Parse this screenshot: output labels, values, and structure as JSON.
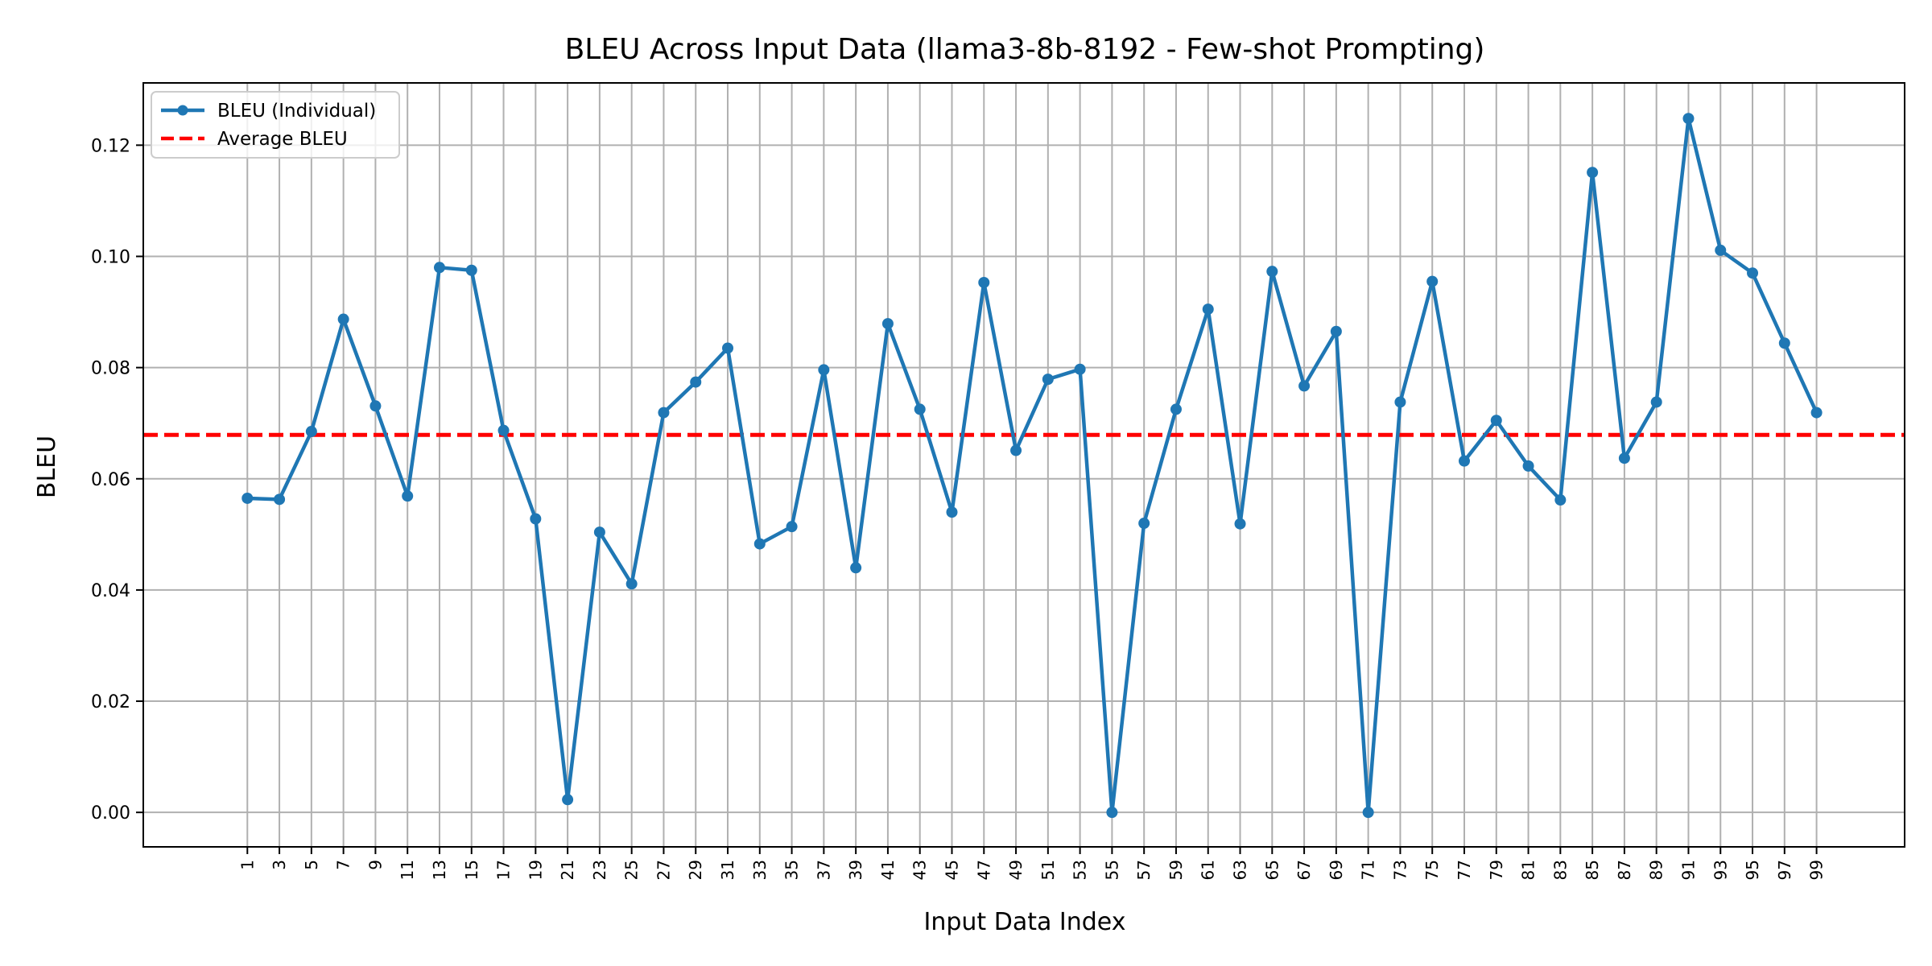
{
  "chart_data": {
    "type": "line",
    "title": "BLEU Across Input Data (llama3-8b-8192 - Few-shot Prompting)",
    "xlabel": "Input Data Index",
    "ylabel": "BLEU",
    "x": [
      1,
      3,
      5,
      7,
      9,
      11,
      13,
      15,
      17,
      19,
      21,
      23,
      25,
      27,
      29,
      31,
      33,
      35,
      37,
      39,
      41,
      43,
      45,
      47,
      49,
      51,
      53,
      55,
      57,
      59,
      61,
      63,
      65,
      67,
      69,
      71,
      73,
      75,
      77,
      79,
      81,
      83,
      85,
      87,
      89,
      91,
      93,
      95,
      97,
      99
    ],
    "xticks": [
      "1",
      "3",
      "5",
      "7",
      "9",
      "11",
      "13",
      "15",
      "17",
      "19",
      "21",
      "23",
      "25",
      "27",
      "29",
      "31",
      "33",
      "35",
      "37",
      "39",
      "41",
      "43",
      "45",
      "47",
      "49",
      "51",
      "53",
      "55",
      "57",
      "59",
      "61",
      "63",
      "65",
      "67",
      "69",
      "71",
      "73",
      "75",
      "77",
      "79",
      "81",
      "83",
      "85",
      "87",
      "89",
      "91",
      "93",
      "95",
      "97",
      "99"
    ],
    "yticks": [
      "0.00",
      "0.02",
      "0.04",
      "0.06",
      "0.08",
      "0.10",
      "0.12"
    ],
    "ytick_values": [
      0,
      0.02,
      0.04,
      0.06,
      0.08,
      0.1,
      0.12
    ],
    "xlim": [
      -5.5,
      104.5
    ],
    "ylim": [
      -0.0062,
      0.1312
    ],
    "grid": true,
    "legend_position": "top-left",
    "series": [
      {
        "name": "BLEU (Individual)",
        "color": "#1f77b4",
        "marker": "circle",
        "values": [
          0.0565,
          0.0563,
          0.0685,
          0.0887,
          0.0731,
          0.0569,
          0.098,
          0.0975,
          0.0687,
          0.0528,
          0.0023,
          0.0504,
          0.0411,
          0.0719,
          0.0774,
          0.0835,
          0.0483,
          0.0514,
          0.0796,
          0.044,
          0.0879,
          0.0725,
          0.054,
          0.0953,
          0.0651,
          0.0779,
          0.0797,
          0.0,
          0.052,
          0.0725,
          0.0905,
          0.0519,
          0.0973,
          0.0767,
          0.0865,
          0.0,
          0.0738,
          0.0955,
          0.0632,
          0.0705,
          0.0623,
          0.0562,
          0.1151,
          0.0637,
          0.0738,
          0.1248,
          0.1011,
          0.097,
          0.0844,
          0.0719
        ]
      }
    ],
    "reference_lines": [
      {
        "name": "Average BLEU",
        "color": "#ff0000",
        "style": "dashed",
        "value": 0.0679
      }
    ]
  }
}
